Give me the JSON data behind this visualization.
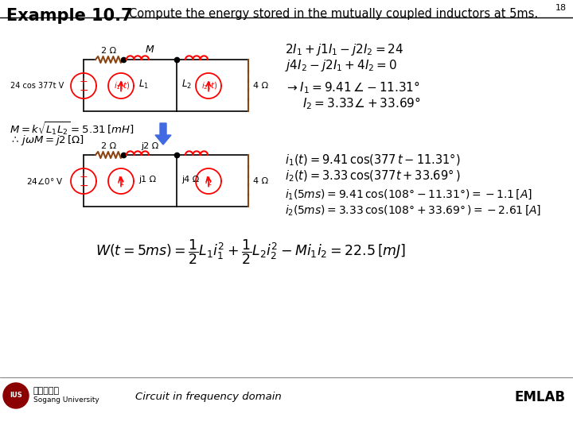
{
  "title": "Example 10.7",
  "subtitle": "Compute the energy stored in the mutually coupled inductors at 5ms.",
  "page_num": "18",
  "bg_color": "#ffffff",
  "footer_left": "Circuit in frequency domain",
  "footer_right": "EMLAB",
  "eq1a": "$2I_1 + j1I_1 - j2I_2 = 24$",
  "eq1b": "$j4I_2 - j2I_1 + 4I_2 = 0$",
  "eq2a": "$\\rightarrow I_1 = 9.41 \\angle -11.31°$",
  "eq2b": "$\\quad I_2 = 3.33\\angle +33.69°$",
  "eq3a": "$i_1(t) = 9.41 \\cos(377\\,t - 11.31°)$",
  "eq3b": "$i_2(t) = 3.33 \\cos(377t + 33.69°\\,)$",
  "eq4a": "$i_1(5ms) = 9.41 \\cos(108° - 11.31°) = -1.1\\,[A]$",
  "eq4b": "$i_2(5ms) = 3.33 \\cos(108° + 33.69°\\,) = -2.61\\,[A]$",
  "eq_bottom": "$W(t = 5ms) = \\dfrac{1}{2}L_1 i_1^2 + \\dfrac{1}{2}L_2 i_2^2 - Mi_1 i_2 = 22.5\\,[mJ]$",
  "eq_m1": "$M = k\\sqrt{L_1 L_2} = 5.31\\,[mH]$",
  "eq_m2": "$\\therefore j\\omega M = j2\\,[\\Omega]$",
  "circuit1_source": "24 cos 377t V",
  "circuit2_source": "24$\\angle$0$°$ V"
}
